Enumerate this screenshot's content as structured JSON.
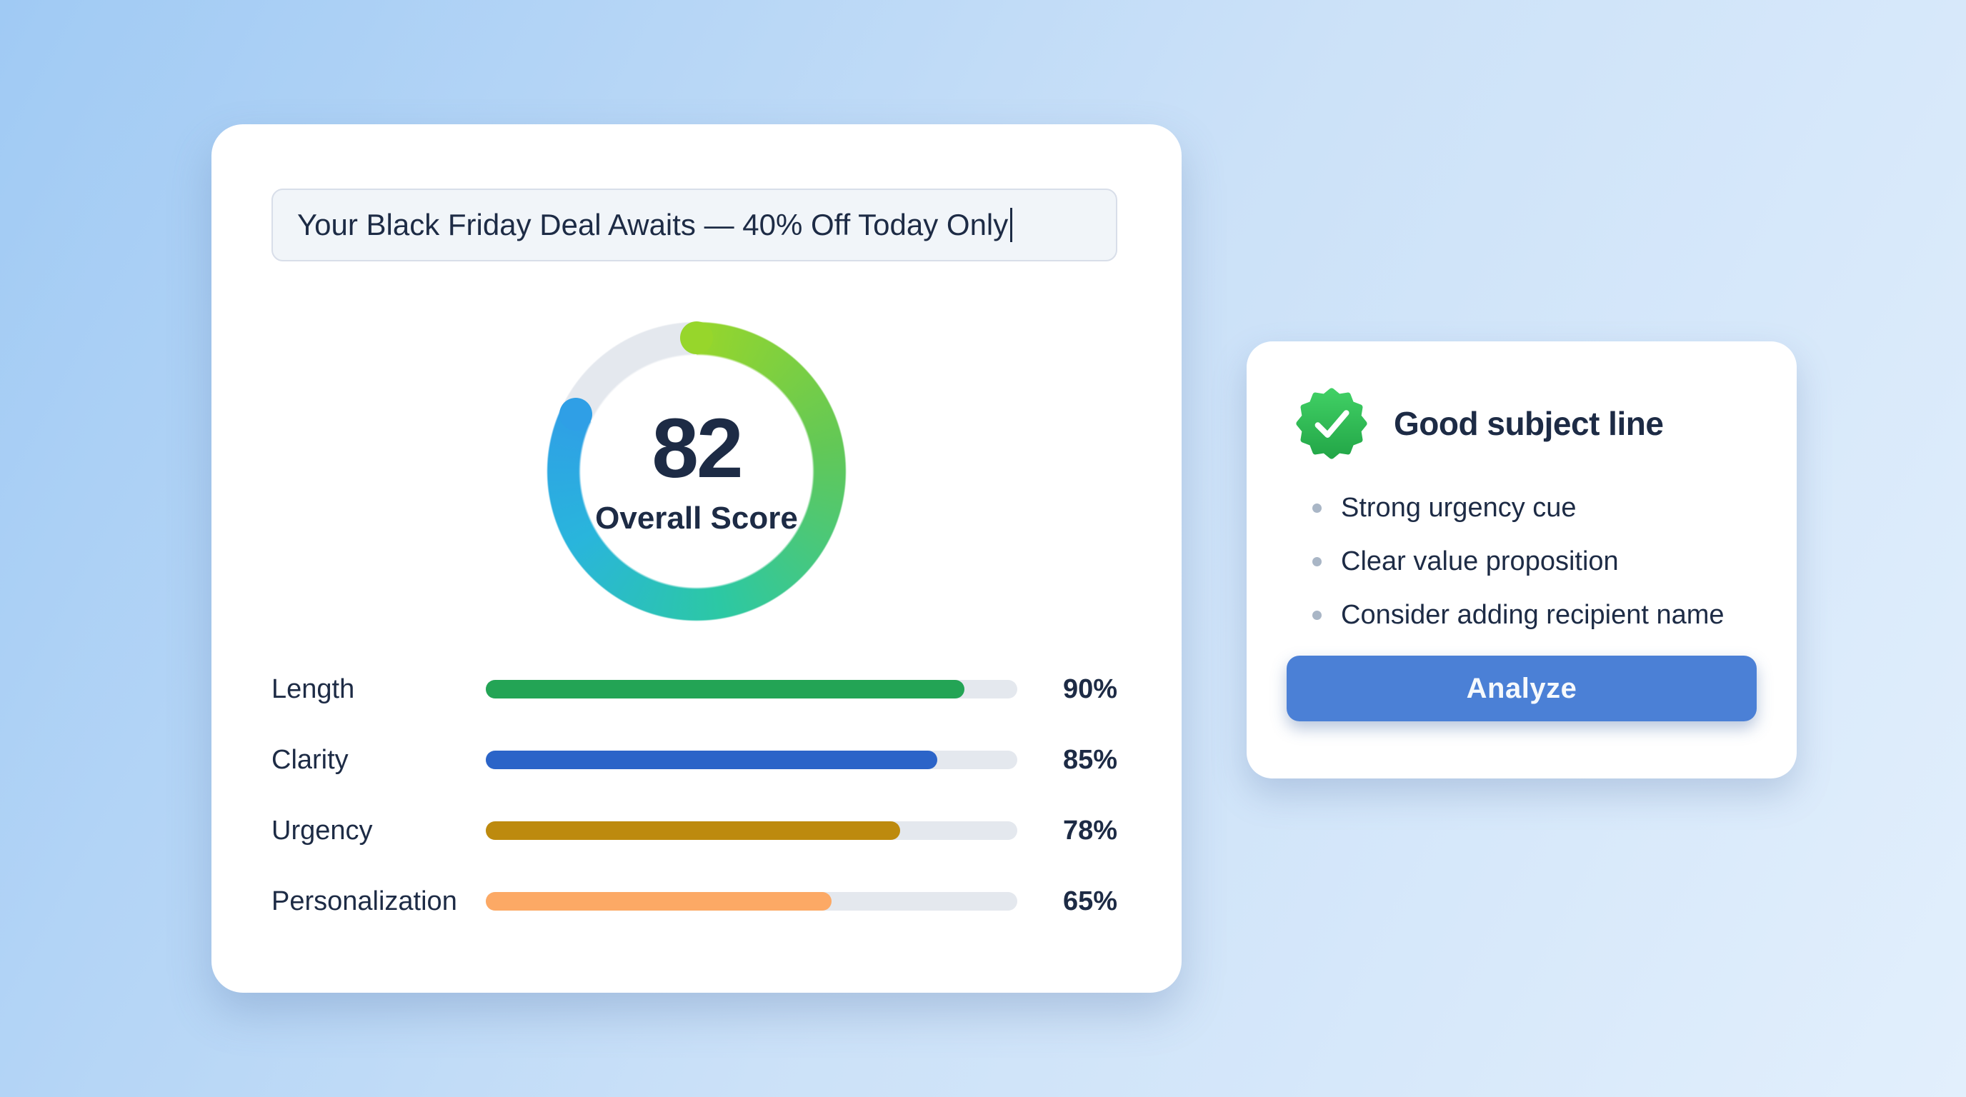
{
  "colors": {
    "bg_gradient": [
      "#a0caf4",
      "#cbe1f8",
      "#e2effc"
    ],
    "ink": "#1d2b45",
    "track": "#e4e8ee",
    "input_bg": "#f1f5f9",
    "input_border": "#d8dee9",
    "accent_button": "#4b80d6",
    "button_text": "#f6f9fc",
    "bullet_dot": "#a9b6c6",
    "badge_green_light": "#40cf64",
    "badge_green_dark": "#23a748",
    "gauge_track": "#e4e8ee",
    "gauge_stops": [
      "#97d62b",
      "#62c857",
      "#2cc8a4",
      "#29b5dc",
      "#2f9fe6"
    ],
    "gauge_stop_degs": [
      0,
      80,
      170,
      240,
      295.2
    ]
  },
  "analyzer_card": {
    "subject_input": {
      "value": "Your Black Friday Deal Awaits — 40% Off Today Only"
    },
    "gauge": {
      "score": "82",
      "label": "Overall Score",
      "percent": 82
    },
    "metrics": [
      {
        "label": "Length",
        "display": "90%",
        "value": 90,
        "color": "#23a455"
      },
      {
        "label": "Clarity",
        "display": "85%",
        "value": 85,
        "color": "#2b64c8"
      },
      {
        "label": "Urgency",
        "display": "78%",
        "value": 78,
        "color": "#bd8a0e"
      },
      {
        "label": "Personalization",
        "display": "65%",
        "value": 65,
        "color": "#fca965"
      }
    ]
  },
  "feedback_card": {
    "badge_icon": "check-seal-icon",
    "title": "Good subject line",
    "bullets": [
      "Strong urgency cue",
      "Clear value proposition",
      "Consider adding recipient name"
    ],
    "button_label": "Analyze"
  }
}
